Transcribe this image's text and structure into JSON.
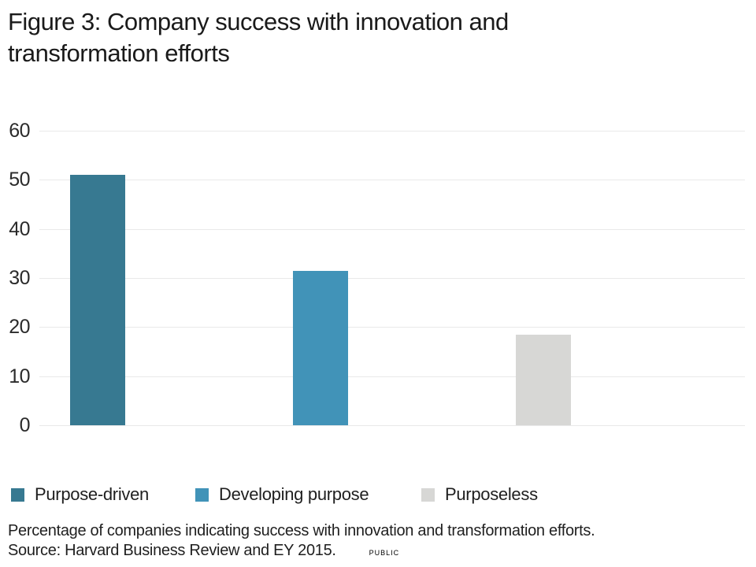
{
  "title": "Figure 3: Company success with innovation and transformation efforts",
  "chart_data": {
    "type": "bar",
    "categories": [
      "Purpose-driven",
      "Developing purpose",
      "Purposeless"
    ],
    "values": [
      51,
      31.5,
      18.5
    ],
    "colors": [
      "#377991",
      "#4193b8",
      "#d7d7d5"
    ],
    "title": "Figure 3: Company success with innovation and transformation efforts",
    "xlabel": "",
    "ylabel": "",
    "ylim": [
      0,
      60
    ],
    "yticks": [
      0,
      10,
      20,
      30,
      40,
      50,
      60
    ],
    "grid": "horizontal",
    "legend_position": "bottom"
  },
  "footnote": {
    "description": "Percentage of companies indicating success with innovation and transformation efforts.",
    "source": "Source: Harvard Business Review and EY 2015.",
    "classification": "PUBLIC"
  }
}
